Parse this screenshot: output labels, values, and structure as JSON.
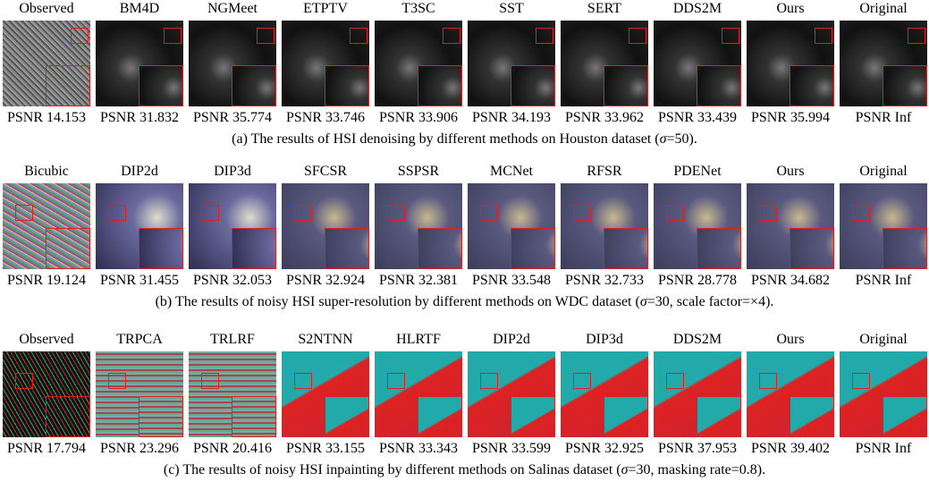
{
  "rows": [
    {
      "methods": [
        "Observed",
        "BM4D",
        "NGMeet",
        "ETPTV",
        "T3SC",
        "SST",
        "SERT",
        "DDS2M",
        "Ours",
        "Original"
      ],
      "psnr": [
        "PSNR 14.153",
        "PSNR 31.832",
        "PSNR 35.774",
        "PSNR 33.746",
        "PSNR 33.906",
        "PSNR 34.193",
        "PSNR 33.962",
        "PSNR 33.439",
        "PSNR 35.994",
        "PSNR Inf"
      ],
      "caption": [
        "(a) The results of HSI denoising by different methods on Houston dataset (",
        "σ",
        "=50)."
      ]
    },
    {
      "methods": [
        "Bicubic",
        "DIP2d",
        "DIP3d",
        "SFCSR",
        "SSPSR",
        "MCNet",
        "RFSR",
        "PDENet",
        "Ours",
        "Original"
      ],
      "psnr": [
        "PSNR 19.124",
        "PSNR 31.455",
        "PSNR 32.053",
        "PSNR 32.924",
        "PSNR 32.381",
        "PSNR 33.548",
        "PSNR 32.733",
        "PSNR 28.778",
        "PSNR 34.682",
        "PSNR Inf"
      ],
      "caption": [
        "(b) The results of noisy HSI super-resolution by different methods on WDC dataset (",
        "σ",
        "=30, scale factor=×4)."
      ]
    },
    {
      "methods": [
        "Observed",
        "TRPCA",
        "TRLRF",
        "S2NTNN",
        "HLRTF",
        "DIP2d",
        "DIP3d",
        "DDS2M",
        "Ours",
        "Original"
      ],
      "psnr": [
        "PSNR 17.794",
        "PSNR 23.296",
        "PSNR 20.416",
        "PSNR 33.155",
        "PSNR 33.343",
        "PSNR 33.599",
        "PSNR 32.925",
        "PSNR 37.953",
        "PSNR 39.402",
        "PSNR Inf"
      ],
      "caption": [
        "(c) The results of noisy HSI inpainting by different methods on Salinas dataset (",
        "σ",
        "=30, masking rate=0.8)."
      ]
    }
  ]
}
